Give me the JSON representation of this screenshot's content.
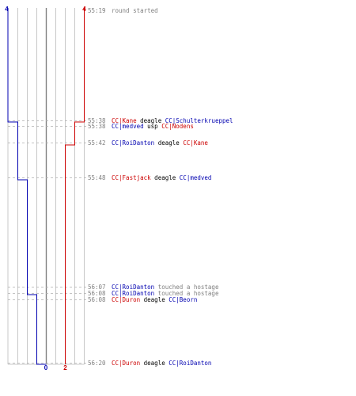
{
  "colors": {
    "team_red": "#cc0000",
    "team_blue": "#0000b0",
    "grid": "#c8c8c8",
    "center_line": "#808080",
    "dashed": "#b0b0b0",
    "time_text": "#808080",
    "neutral_text": "#808080"
  },
  "counts": {
    "blue_start": "4",
    "red_start": "4",
    "blue_end": "0",
    "red_end": "2"
  },
  "events": [
    {
      "time": "55:19",
      "parts": [
        {
          "text": "round started",
          "style": "neutral"
        }
      ]
    },
    {
      "time": "55:38",
      "parts": [
        {
          "text": "CC|Kane",
          "style": "red"
        },
        {
          "text": " deagle ",
          "style": "verb"
        },
        {
          "text": "CC|Schulterkrueppel",
          "style": "blue"
        }
      ]
    },
    {
      "time": "55:38",
      "parts": [
        {
          "text": "CC|medved",
          "style": "blue"
        },
        {
          "text": " usp ",
          "style": "verb"
        },
        {
          "text": "CC|Nodens",
          "style": "red"
        }
      ]
    },
    {
      "time": "55:42",
      "parts": [
        {
          "text": "CC|RoiDanton",
          "style": "blue"
        },
        {
          "text": " deagle ",
          "style": "verb"
        },
        {
          "text": "CC|Kane",
          "style": "red"
        }
      ]
    },
    {
      "time": "55:48",
      "parts": [
        {
          "text": "CC|Fastjack",
          "style": "red"
        },
        {
          "text": " deagle ",
          "style": "verb"
        },
        {
          "text": "CC|medved",
          "style": "blue"
        }
      ]
    },
    {
      "time": "56:07",
      "parts": [
        {
          "text": "CC|RoiDanton",
          "style": "blue"
        },
        {
          "text": " touched a hostage",
          "style": "neutral"
        }
      ]
    },
    {
      "time": "56:08",
      "parts": [
        {
          "text": "CC|RoiDanton",
          "style": "blue"
        },
        {
          "text": " touched a hostage",
          "style": "neutral"
        }
      ]
    },
    {
      "time": "56:08",
      "parts": [
        {
          "text": "CC|Duron",
          "style": "red"
        },
        {
          "text": " deagle ",
          "style": "verb"
        },
        {
          "text": "CC|Beorn",
          "style": "blue"
        }
      ]
    },
    {
      "time": "56:20",
      "parts": [
        {
          "text": "CC|Duron",
          "style": "red"
        },
        {
          "text": " deagle ",
          "style": "verb"
        },
        {
          "text": "CC|RoiDanton",
          "style": "blue"
        }
      ]
    }
  ]
}
